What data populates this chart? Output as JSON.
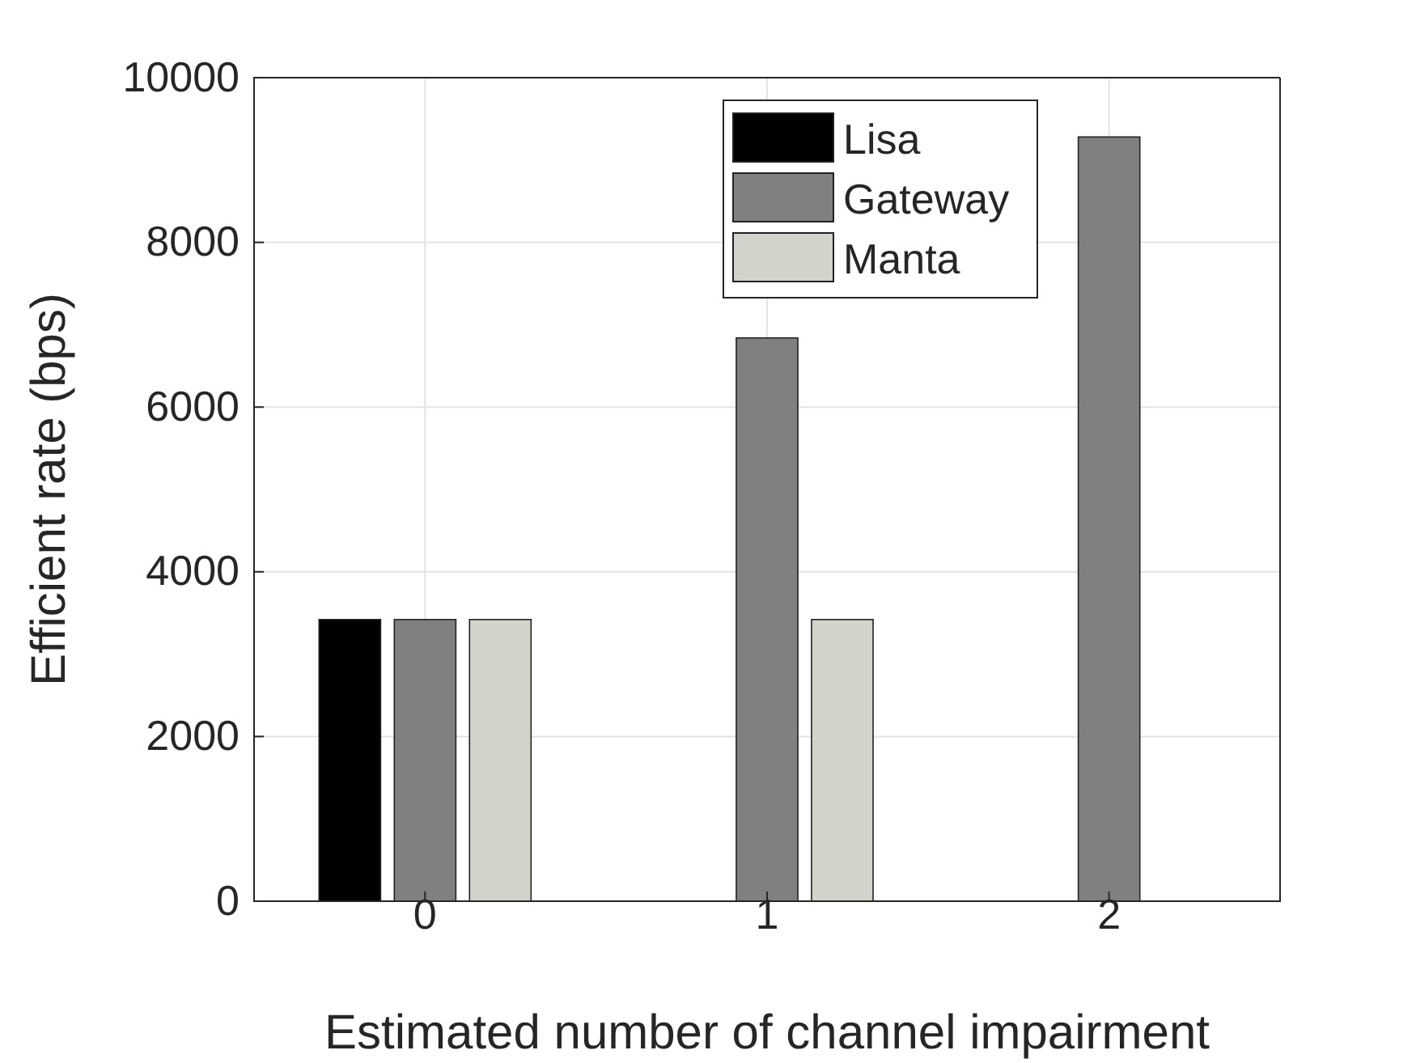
{
  "chart_data": {
    "type": "bar",
    "xlabel": "Estimated number of channel impairment",
    "ylabel": "Efficient rate (bps)",
    "categories": [
      "0",
      "1",
      "2"
    ],
    "series": [
      {
        "name": "Lisa",
        "color": "#000000",
        "values": [
          3420,
          0,
          0
        ]
      },
      {
        "name": "Gateway",
        "color": "#808080",
        "values": [
          3420,
          6840,
          9280
        ]
      },
      {
        "name": "Manta",
        "color": "#d4d3cb",
        "values": [
          3420,
          3420,
          0
        ]
      }
    ],
    "ylim": [
      0,
      10000
    ],
    "yticks": [
      0,
      2000,
      4000,
      6000,
      8000,
      10000
    ],
    "grid": true,
    "legend": "top right"
  }
}
